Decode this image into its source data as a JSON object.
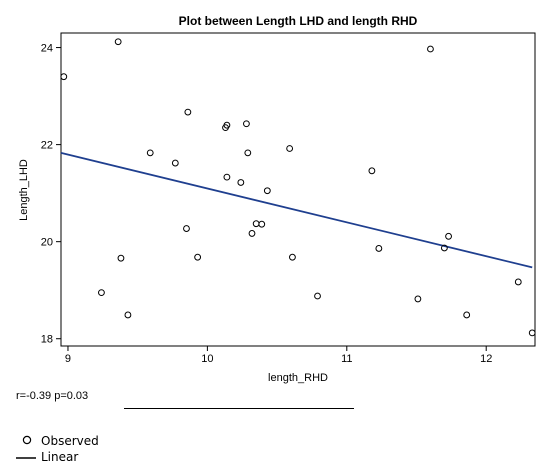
{
  "chart_data": {
    "type": "scatter",
    "title": "Plot between Length LHD and length RHD",
    "xlabel": "length_RHD",
    "ylabel": "Length_LHD",
    "xlim": [
      8.95,
      12.35
    ],
    "ylim": [
      17.85,
      24.3
    ],
    "xticks": [
      9,
      10,
      11,
      12
    ],
    "yticks": [
      18,
      20,
      22,
      24
    ],
    "grid": false,
    "series": [
      {
        "name": "Observed",
        "type": "scatter",
        "marker": "circle-open",
        "color": "#000000",
        "points": [
          {
            "x": 8.97,
            "y": 23.4
          },
          {
            "x": 9.24,
            "y": 18.95
          },
          {
            "x": 9.36,
            "y": 24.12
          },
          {
            "x": 9.38,
            "y": 19.66
          },
          {
            "x": 9.43,
            "y": 18.49
          },
          {
            "x": 9.59,
            "y": 21.83
          },
          {
            "x": 9.77,
            "y": 21.62
          },
          {
            "x": 9.85,
            "y": 20.27
          },
          {
            "x": 9.86,
            "y": 22.67
          },
          {
            "x": 9.93,
            "y": 19.68
          },
          {
            "x": 10.13,
            "y": 22.35
          },
          {
            "x": 10.14,
            "y": 22.4
          },
          {
            "x": 10.14,
            "y": 21.33
          },
          {
            "x": 10.24,
            "y": 21.22
          },
          {
            "x": 10.28,
            "y": 22.43
          },
          {
            "x": 10.29,
            "y": 21.83
          },
          {
            "x": 10.32,
            "y": 20.17
          },
          {
            "x": 10.35,
            "y": 20.37
          },
          {
            "x": 10.39,
            "y": 20.36
          },
          {
            "x": 10.43,
            "y": 21.05
          },
          {
            "x": 10.59,
            "y": 21.92
          },
          {
            "x": 10.61,
            "y": 19.68
          },
          {
            "x": 10.79,
            "y": 18.88
          },
          {
            "x": 11.18,
            "y": 21.46
          },
          {
            "x": 11.23,
            "y": 19.86
          },
          {
            "x": 11.51,
            "y": 18.82
          },
          {
            "x": 11.6,
            "y": 23.97
          },
          {
            "x": 11.7,
            "y": 19.87
          },
          {
            "x": 11.73,
            "y": 20.11
          },
          {
            "x": 11.86,
            "y": 18.49
          },
          {
            "x": 12.23,
            "y": 19.17
          },
          {
            "x": 12.33,
            "y": 18.12
          }
        ]
      },
      {
        "name": "Linear",
        "type": "line",
        "color": "#1f3f8f",
        "points": [
          {
            "x": 8.95,
            "y": 21.83
          },
          {
            "x": 12.33,
            "y": 19.47
          }
        ]
      }
    ]
  },
  "footer": {
    "stats": "r=-0.39 p=0.03"
  },
  "legend": {
    "observed_label": "Observed",
    "linear_label": "Linear"
  }
}
